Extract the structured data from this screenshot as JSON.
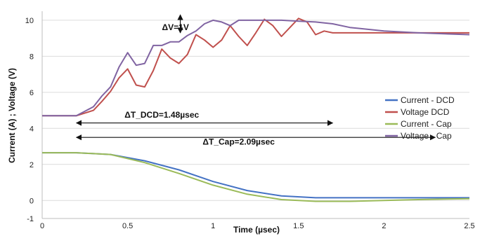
{
  "chart_data": {
    "type": "line",
    "title": "",
    "xlabel": "Time (µsec)",
    "ylabel": "Current (A) ; Voltage (V)",
    "xlim": [
      0,
      2.5
    ],
    "ylim": [
      -1,
      10.5
    ],
    "xticks": [
      0,
      0.5,
      1,
      1.5,
      2,
      2.5
    ],
    "xtick_labels": [
      "0",
      "0.5",
      "1",
      "1.5",
      "2",
      "2.5"
    ],
    "yticks": [
      -1,
      0,
      2,
      4,
      6,
      8,
      10
    ],
    "ytick_labels": [
      "-1",
      "0",
      "2",
      "4",
      "6",
      "8",
      "10"
    ],
    "grid": "horizontal",
    "legend_position": "right",
    "series": [
      {
        "name": "Current - DCD",
        "color": "#4472C4",
        "x": [
          0,
          0.2,
          0.4,
          0.6,
          0.8,
          1.0,
          1.2,
          1.4,
          1.6,
          1.8,
          2.0,
          2.2,
          2.5
        ],
        "y": [
          2.65,
          2.65,
          2.55,
          2.2,
          1.7,
          1.05,
          0.55,
          0.25,
          0.15,
          0.15,
          0.15,
          0.15,
          0.15
        ]
      },
      {
        "name": "Voltage DCD",
        "color": "#C0504D",
        "x": [
          0,
          0.2,
          0.25,
          0.3,
          0.35,
          0.4,
          0.45,
          0.5,
          0.55,
          0.6,
          0.65,
          0.7,
          0.75,
          0.8,
          0.85,
          0.9,
          0.95,
          1.0,
          1.05,
          1.1,
          1.15,
          1.2,
          1.25,
          1.3,
          1.35,
          1.4,
          1.45,
          1.5,
          1.55,
          1.6,
          1.65,
          1.7,
          1.8,
          2.0,
          2.2,
          2.5
        ],
        "y": [
          4.7,
          4.7,
          4.85,
          5.0,
          5.5,
          6.05,
          6.8,
          7.3,
          6.4,
          6.3,
          7.2,
          8.4,
          7.9,
          7.6,
          8.1,
          9.2,
          8.9,
          8.5,
          8.9,
          9.7,
          9.1,
          8.6,
          9.3,
          10.05,
          9.7,
          9.1,
          9.6,
          10.1,
          9.9,
          9.2,
          9.4,
          9.3,
          9.3,
          9.3,
          9.3,
          9.3
        ]
      },
      {
        "name": "Current - Cap",
        "color": "#9BBB59",
        "x": [
          0,
          0.2,
          0.4,
          0.6,
          0.8,
          1.0,
          1.2,
          1.4,
          1.6,
          1.8,
          2.0,
          2.2,
          2.5
        ],
        "y": [
          2.65,
          2.65,
          2.55,
          2.1,
          1.5,
          0.85,
          0.35,
          0.05,
          -0.05,
          -0.05,
          0.0,
          0.05,
          0.1
        ]
      },
      {
        "name": "Voltage - Cap",
        "color": "#8064A2",
        "x": [
          0,
          0.2,
          0.25,
          0.3,
          0.35,
          0.4,
          0.45,
          0.5,
          0.55,
          0.6,
          0.65,
          0.7,
          0.75,
          0.8,
          0.85,
          0.9,
          0.95,
          1.0,
          1.05,
          1.1,
          1.15,
          1.2,
          1.3,
          1.4,
          1.5,
          1.6,
          1.7,
          1.8,
          2.0,
          2.2,
          2.5
        ],
        "y": [
          4.7,
          4.7,
          4.95,
          5.2,
          5.8,
          6.3,
          7.4,
          8.2,
          7.5,
          7.6,
          8.6,
          8.6,
          8.8,
          8.8,
          9.15,
          9.4,
          9.8,
          10.0,
          9.9,
          9.7,
          10.0,
          10.0,
          10.0,
          10.0,
          9.95,
          9.9,
          9.8,
          9.6,
          9.4,
          9.3,
          9.2
        ]
      }
    ],
    "annotations": [
      {
        "text": "ΔV=1V",
        "x": 0.78,
        "y": 9.45
      },
      {
        "text": "ΔT_DCD=1.48µsec",
        "x": 0.7,
        "y": 4.6,
        "arrow_from": 0.2,
        "arrow_to": 1.7,
        "arrow_y": 4.3
      },
      {
        "text": "ΔT_Cap=2.09µsec",
        "x": 1.15,
        "y": 3.1,
        "arrow_from": 0.2,
        "arrow_to": 2.3,
        "arrow_y": 3.5
      }
    ]
  }
}
